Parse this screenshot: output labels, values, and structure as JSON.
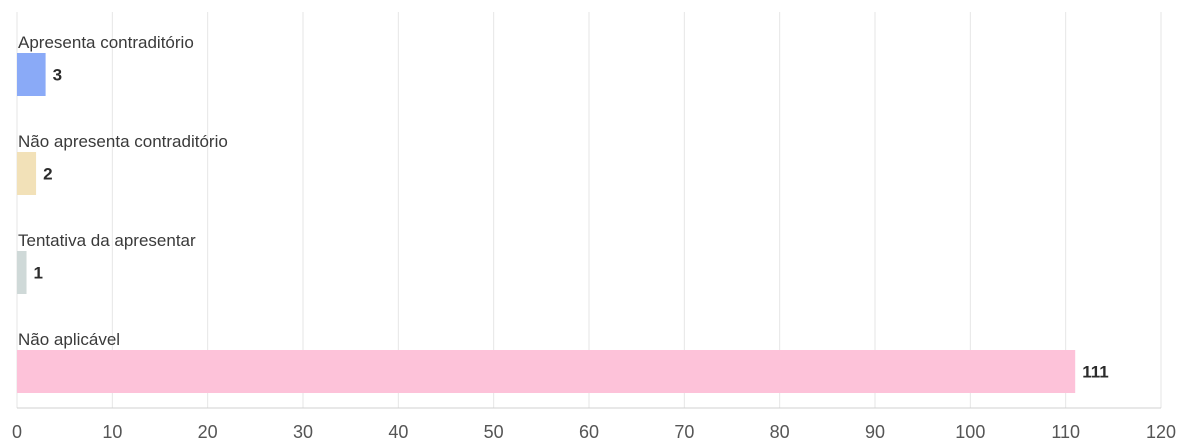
{
  "chart_data": {
    "type": "bar",
    "orientation": "horizontal",
    "title": "",
    "xlabel": "",
    "ylabel": "",
    "categories": [
      "Apresenta contraditório",
      "Não apresenta contraditório",
      "Tentativa da apresentar",
      "Não aplicável"
    ],
    "values": [
      3,
      2,
      1,
      111
    ],
    "value_labels": [
      "3",
      "2",
      "1",
      "111"
    ],
    "colors": [
      "#8aaaf7",
      "#f2e1b8",
      "#cfd9d8",
      "#fdc2d9"
    ],
    "xlim": [
      0,
      120
    ],
    "xticks": [
      0,
      10,
      20,
      30,
      40,
      50,
      60,
      70,
      80,
      90,
      100,
      110,
      120
    ],
    "xtick_labels": [
      "0",
      "10",
      "20",
      "30",
      "40",
      "50",
      "60",
      "70",
      "80",
      "90",
      "100",
      "110",
      "120"
    ],
    "grid": true,
    "legend": "none"
  }
}
